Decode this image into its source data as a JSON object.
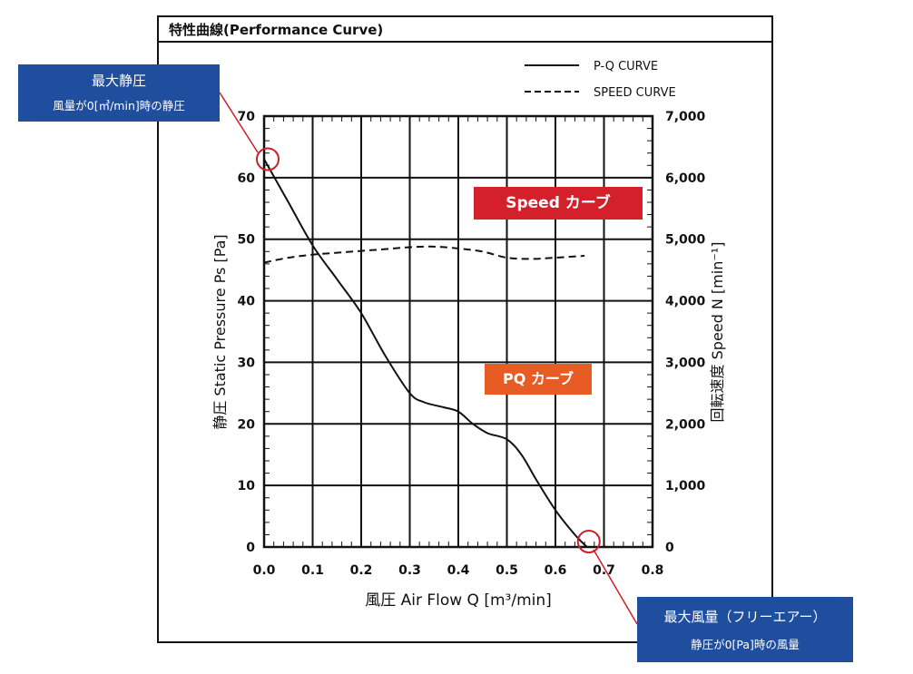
{
  "frame_title": "特性曲線(Performance Curve)",
  "chart_data": {
    "type": "line",
    "title": "特性曲線(Performance Curve)",
    "xlabel": "風圧 Air Flow Q [m³/min]",
    "ylabel": "静圧 Static Pressure Ps [Pa]",
    "y2label": "回転速度 Speed N [min⁻¹]",
    "xlim": [
      0,
      0.8
    ],
    "ylim": [
      0,
      70
    ],
    "y2lim": [
      0,
      7000
    ],
    "x_ticks": [
      "0.0",
      "0.1",
      "0.2",
      "0.3",
      "0.4",
      "0.5",
      "0.6",
      "0.7",
      "0.8"
    ],
    "y_ticks": [
      "0",
      "10",
      "20",
      "30",
      "40",
      "50",
      "60",
      "70"
    ],
    "y2_ticks": [
      "0",
      "1,000",
      "2,000",
      "3,000",
      "4,000",
      "5,000",
      "6,000",
      "7,000"
    ],
    "grid": true,
    "legend": [
      "P-Q CURVE",
      "SPEED CURVE"
    ],
    "legend_position": "top-right",
    "series": [
      {
        "name": "P-Q CURVE",
        "axis": "left",
        "style": "solid",
        "x": [
          0.0,
          0.05,
          0.1,
          0.15,
          0.2,
          0.25,
          0.3,
          0.33,
          0.37,
          0.4,
          0.43,
          0.46,
          0.5,
          0.53,
          0.56,
          0.6,
          0.64,
          0.665
        ],
        "y": [
          63,
          56,
          49,
          43.5,
          38,
          31,
          25,
          23.5,
          22.7,
          22,
          20,
          18.5,
          17.5,
          15,
          11,
          6,
          2,
          0
        ]
      },
      {
        "name": "SPEED CURVE",
        "axis": "right",
        "style": "dashed",
        "x": [
          0.0,
          0.05,
          0.1,
          0.15,
          0.2,
          0.25,
          0.3,
          0.35,
          0.4,
          0.45,
          0.5,
          0.55,
          0.6,
          0.66
        ],
        "y": [
          4620,
          4700,
          4750,
          4780,
          4810,
          4840,
          4870,
          4880,
          4850,
          4800,
          4700,
          4680,
          4700,
          4730
        ]
      }
    ],
    "annotations": [
      "Speed カーブ",
      "PQ カーブ"
    ],
    "highlights": [
      {
        "name": "max-static-pressure",
        "x": 0.0,
        "y": 63
      },
      {
        "name": "max-air-flow",
        "x": 0.665,
        "y": 0
      }
    ]
  },
  "callouts": {
    "max_pressure_title": "最大静圧",
    "max_pressure_sub": "風量が0[㎥/min]時の静圧",
    "max_flow_title": "最大風量（フリーエアー）",
    "max_flow_sub": "静圧が0[Pa]時の風量"
  },
  "colors": {
    "callout_bg": "#1f4e9e",
    "speed_label_bg": "#d3202a",
    "pq_label_bg": "#e85b25",
    "highlight": "#cc1f2a"
  }
}
